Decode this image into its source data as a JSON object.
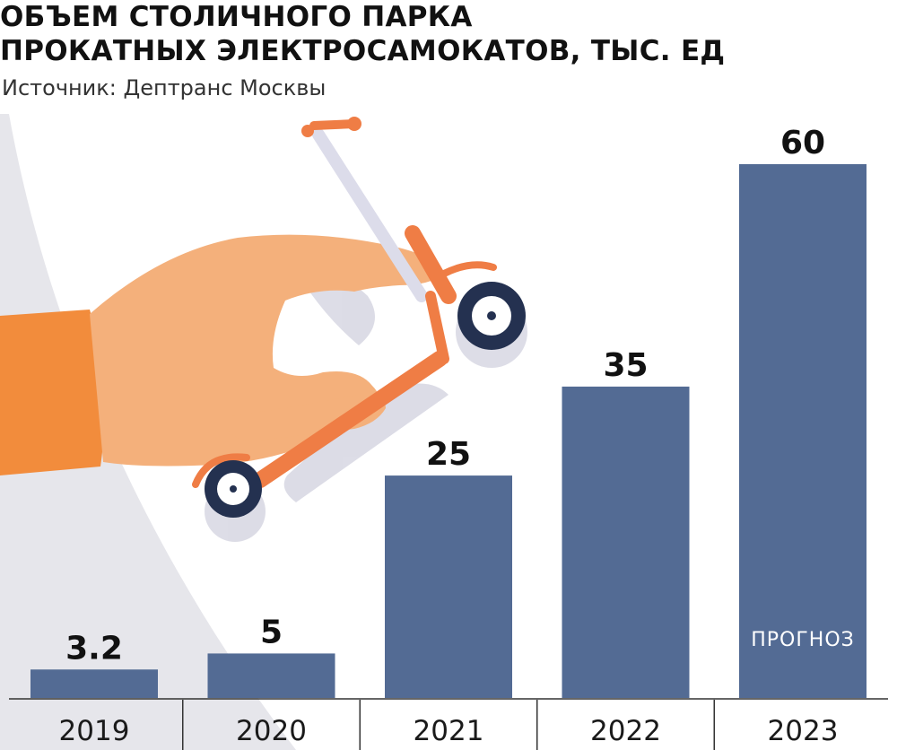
{
  "chart_data": {
    "type": "bar",
    "title_lines": [
      "ОБЪЕМ СТОЛИЧНОГО ПАРКА",
      "ПРОКАТНЫХ ЭЛЕКТРОСАМОКАТОВ, ТЫС. ЕД"
    ],
    "subtitle": "Источник: Дептранс Москвы",
    "categories": [
      "2019",
      "2020",
      "2021",
      "2022",
      "2023"
    ],
    "values": [
      3.2,
      5,
      25,
      35,
      60
    ],
    "value_labels": [
      "3.2",
      "5",
      "25",
      "35",
      "60"
    ],
    "annotations": [
      {
        "category": "2023",
        "text": "ПРОГНОЗ"
      }
    ],
    "ylim": [
      0,
      60
    ],
    "grid": false,
    "legend": "none"
  },
  "colors": {
    "bar": "#536b94",
    "baseline": "#333333",
    "background_arc": "#e6e6eb",
    "hand_skin": "#f4b07b",
    "hand_shadow": "#e8975e",
    "sleeve": "#f28c3c",
    "scooter": "#ef7d45",
    "wheel": "#243150"
  },
  "decorations": [
    "hand-holding-scooter-illustration"
  ]
}
